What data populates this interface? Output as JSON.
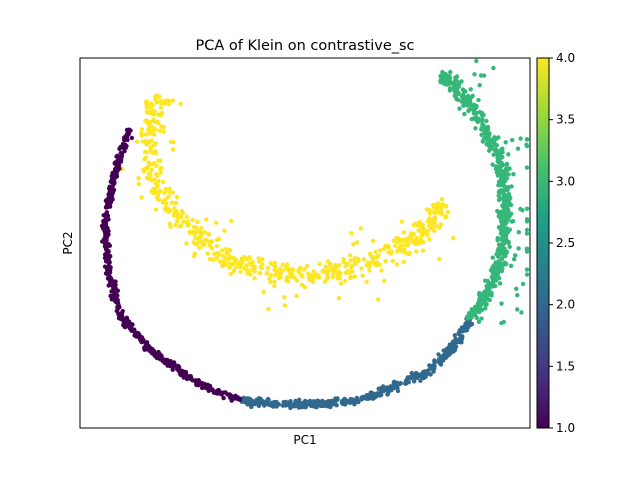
{
  "chart_data": {
    "type": "scatter",
    "title": "PCA of Klein on contrastive_sc",
    "xlabel": "PC1",
    "ylabel": "PC2",
    "x_ticks_shown": false,
    "y_ticks_shown": false,
    "grid": false,
    "colorbar": {
      "colormap": "viridis",
      "min": 1.0,
      "max": 4.0,
      "ticks": [
        "1.0",
        "1.5",
        "2.0",
        "2.5",
        "3.0",
        "3.5",
        "4.0"
      ],
      "tick_values": [
        1.0,
        1.5,
        2.0,
        2.5,
        3.0,
        3.5,
        4.0
      ]
    },
    "series": [
      {
        "value": 1,
        "color": "#440154",
        "arc": [
          [
            130,
            130
          ],
          [
            115,
            170
          ],
          [
            105,
            225
          ],
          [
            108,
            270
          ],
          [
            120,
            315
          ],
          [
            150,
            350
          ],
          [
            200,
            385
          ],
          [
            240,
            400
          ]
        ]
      },
      {
        "value": 2,
        "color": "#31688e",
        "arc": [
          [
            240,
            400
          ],
          [
            280,
            405
          ],
          [
            320,
            404
          ],
          [
            360,
            400
          ],
          [
            400,
            385
          ],
          [
            430,
            370
          ],
          [
            455,
            345
          ],
          [
            470,
            320
          ]
        ]
      },
      {
        "value": 3,
        "color": "#35b779",
        "arc": [
          [
            470,
            320
          ],
          [
            490,
            290
          ],
          [
            503,
            250
          ],
          [
            506,
            200
          ],
          [
            500,
            160
          ],
          [
            480,
            120
          ],
          [
            455,
            85
          ],
          [
            440,
            75
          ]
        ]
      },
      {
        "value": 4,
        "color": "#fde725",
        "arc": [
          [
            160,
            95
          ],
          [
            150,
            120
          ],
          [
            150,
            160
          ],
          [
            160,
            195
          ],
          [
            185,
            225
          ],
          [
            220,
            255
          ],
          [
            260,
            270
          ],
          [
            300,
            275
          ],
          [
            340,
            270
          ],
          [
            370,
            262
          ],
          [
            400,
            250
          ],
          [
            425,
            230
          ],
          [
            445,
            200
          ]
        ]
      }
    ]
  }
}
